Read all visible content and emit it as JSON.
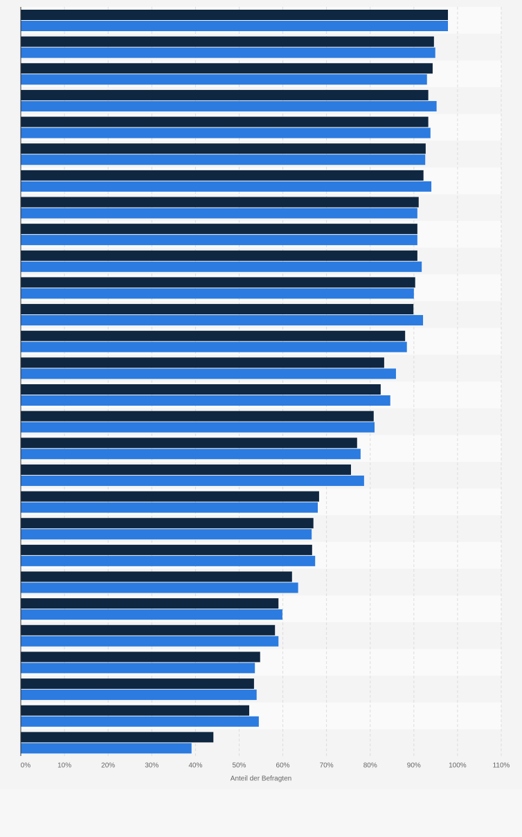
{
  "chart_data": {
    "type": "bar",
    "orientation": "horizontal",
    "axis_label": "Anteil der Befragten",
    "categories": [
      null,
      null,
      null,
      null,
      null,
      null,
      null,
      null,
      null,
      null,
      null,
      null,
      null,
      null,
      null,
      null,
      null,
      null,
      null,
      null,
      null,
      null,
      null,
      null,
      null,
      null,
      null,
      null
    ],
    "series": [
      {
        "color": "#0f2741",
        "values": [
          97.8,
          94.6,
          94.3,
          93.3,
          93.3,
          92.7,
          92.2,
          91.1,
          90.8,
          90.8,
          90.3,
          89.9,
          88.0,
          83.2,
          82.4,
          80.8,
          77.0,
          75.6,
          68.3,
          67.0,
          66.7,
          62.1,
          59.0,
          58.2,
          54.8,
          53.4,
          52.3,
          44.1
        ]
      },
      {
        "color": "#2b7be0",
        "values": [
          97.8,
          94.9,
          93.0,
          95.2,
          93.8,
          92.6,
          94.0,
          90.8,
          90.8,
          91.8,
          90.0,
          92.1,
          88.4,
          85.9,
          84.6,
          81.0,
          77.8,
          78.6,
          68.0,
          66.6,
          67.4,
          63.5,
          59.9,
          59.0,
          53.6,
          54.0,
          54.5,
          39.1
        ]
      }
    ],
    "xlim": [
      0,
      110
    ],
    "xticks": [
      {
        "value": 0,
        "label": "0%"
      },
      {
        "value": 10,
        "label": "10%"
      },
      {
        "value": 20,
        "label": "20%"
      },
      {
        "value": 30,
        "label": "30%"
      },
      {
        "value": 40,
        "label": "40%"
      },
      {
        "value": 50,
        "label": "50%"
      },
      {
        "value": 60,
        "label": "60%"
      },
      {
        "value": 70,
        "label": "70%"
      },
      {
        "value": 80,
        "label": "80%"
      },
      {
        "value": 90,
        "label": "90%"
      },
      {
        "value": 100,
        "label": "100%"
      },
      {
        "value": 110,
        "label": "110%"
      }
    ],
    "grid": true
  }
}
